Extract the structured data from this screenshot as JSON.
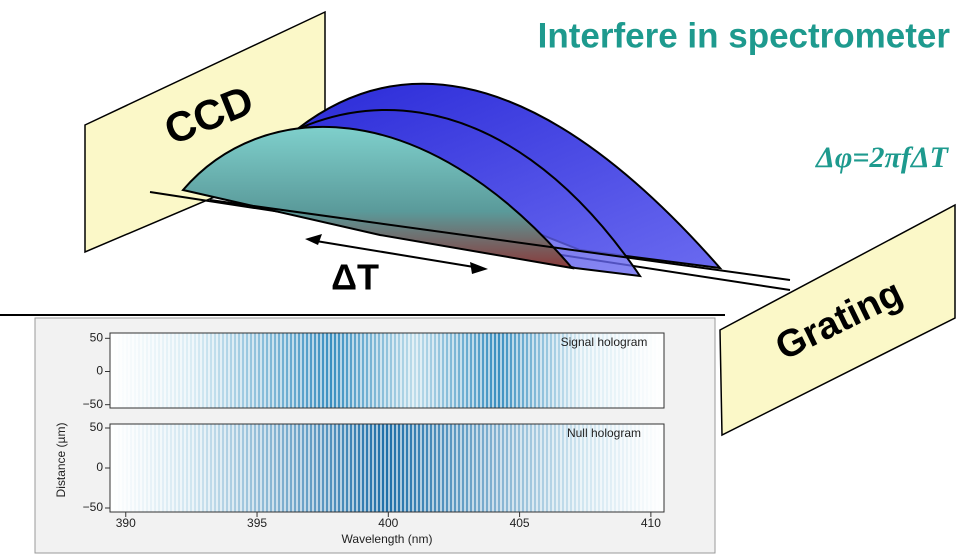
{
  "title": "Interfere in spectrometer",
  "formula": "Δφ=2πfΔT",
  "labels": {
    "ccd": "CCD",
    "delta_t": "ΔT",
    "grating": "Grating"
  },
  "plot": {
    "x_label": "Wavelength (nm)",
    "y_label": "Distance (µm)",
    "xlim": [
      389.4,
      410.5
    ],
    "xticks": [
      390,
      395,
      400,
      405,
      410
    ],
    "panels": [
      {
        "label": "Signal hologram",
        "ylim": [
          -55,
          58
        ],
        "yticks": [
          50,
          0,
          {
            "value": -50,
            "label": "−50"
          }
        ]
      },
      {
        "label": "Null hologram",
        "ylim": [
          -55,
          55
        ],
        "yticks": [
          50,
          0,
          {
            "value": -50,
            "label": "−50"
          }
        ]
      }
    ]
  }
}
